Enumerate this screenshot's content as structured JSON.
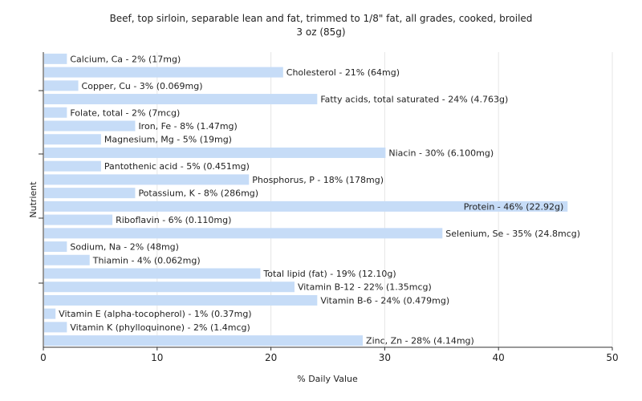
{
  "chart_data": {
    "type": "bar",
    "orientation": "horizontal",
    "title": "Beef, top sirloin, separable lean and fat, trimmed to 1/8\" fat, all grades, cooked, broiled",
    "subtitle": "3 oz (85g)",
    "xlabel": "% Daily Value",
    "ylabel": "Nutrient",
    "xlim": [
      0,
      50
    ],
    "xticks": [
      0,
      10,
      20,
      30,
      40,
      50
    ],
    "grid": true,
    "bar_color": "#c6dcf7",
    "categories": [
      "Calcium, Ca",
      "Cholesterol",
      "Copper, Cu",
      "Fatty acids, total saturated",
      "Folate, total",
      "Iron, Fe",
      "Magnesium, Mg",
      "Niacin",
      "Pantothenic acid",
      "Phosphorus, P",
      "Potassium, K",
      "Protein",
      "Riboflavin",
      "Selenium, Se",
      "Sodium, Na",
      "Thiamin",
      "Total lipid (fat)",
      "Vitamin B-12",
      "Vitamin B-6",
      "Vitamin E (alpha-tocopherol)",
      "Vitamin K (phylloquinone)",
      "Zinc, Zn"
    ],
    "values": [
      2,
      21,
      3,
      24,
      2,
      8,
      5,
      30,
      5,
      18,
      8,
      46,
      6,
      35,
      2,
      4,
      19,
      22,
      24,
      1,
      2,
      28
    ],
    "labels": [
      "Calcium, Ca - 2% (17mg)",
      "Cholesterol - 21% (64mg)",
      "Copper, Cu - 3% (0.069mg)",
      "Fatty acids, total saturated - 24% (4.763g)",
      "Folate, total - 2% (7mcg)",
      "Iron, Fe - 8% (1.47mg)",
      "Magnesium, Mg - 5% (19mg)",
      "Niacin - 30% (6.100mg)",
      "Pantothenic acid - 5% (0.451mg)",
      "Phosphorus, P - 18% (178mg)",
      "Potassium, K - 8% (286mg)",
      "Protein - 46% (22.92g)",
      "Riboflavin - 6% (0.110mg)",
      "Selenium, Se - 35% (24.8mcg)",
      "Sodium, Na - 2% (48mg)",
      "Thiamin - 4% (0.062mg)",
      "Total lipid (fat) - 19% (12.10g)",
      "Vitamin B-12 - 22% (1.35mcg)",
      "Vitamin B-6 - 24% (0.479mg)",
      "Vitamin E (alpha-tocopherol) - 1% (0.37mg)",
      "Vitamin K (phylloquinone) - 2% (1.4mcg)",
      "Zinc, Zn - 28% (4.14mg)"
    ]
  }
}
